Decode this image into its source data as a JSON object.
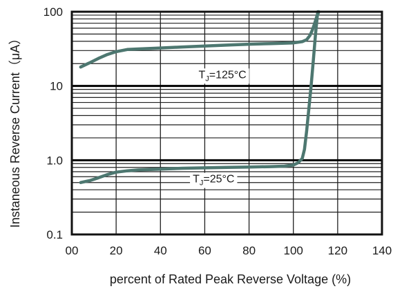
{
  "chart_data": {
    "type": "line",
    "title": "",
    "xlabel": "percent of Rated  Peak Reverse Voltage (%)",
    "ylabel": "Instaneous Reverse Current（μA）",
    "xlim": [
      0,
      140
    ],
    "ylim": [
      0.1,
      100
    ],
    "yscale": "log",
    "grid": true,
    "x_ticks": [
      0,
      20,
      40,
      60,
      80,
      100,
      120,
      140
    ],
    "x_tick_labels": [
      "00",
      "20",
      "40",
      "60",
      "80",
      "100",
      "120",
      "140"
    ],
    "y_ticks": [
      0.1,
      1,
      10,
      100
    ],
    "y_tick_labels": [
      "0.1",
      "1.0",
      "10",
      "100"
    ],
    "series": [
      {
        "name": "",
        "label": {
          "main": "T",
          "sub": "J",
          "rest": "=125°C",
          "x": 68,
          "y": 14.5
        },
        "x": [
          4,
          8,
          12,
          16,
          20,
          25,
          30,
          40,
          50,
          60,
          70,
          80,
          90,
          100,
          104,
          106,
          107.5,
          108.5,
          109.5,
          110.5,
          111.5
        ],
        "y": [
          18,
          20.5,
          23.5,
          26.5,
          29,
          31,
          31.5,
          32.5,
          33.5,
          34.5,
          35.5,
          36.5,
          37.2,
          38,
          39.5,
          42,
          48,
          56,
          68,
          85,
          100
        ]
      },
      {
        "name": "",
        "label": {
          "main": "T",
          "sub": "J",
          "rest": "=25°C",
          "x": 64,
          "y": 0.57
        },
        "x": [
          4,
          8,
          12,
          16,
          20,
          25,
          30,
          40,
          50,
          60,
          70,
          80,
          90,
          96,
          100,
          102,
          104,
          105,
          106,
          107,
          108,
          109,
          110,
          111
        ],
        "y": [
          0.5,
          0.53,
          0.58,
          0.64,
          0.69,
          0.72,
          0.74,
          0.76,
          0.78,
          0.79,
          0.8,
          0.81,
          0.82,
          0.83,
          0.86,
          0.92,
          1.05,
          1.4,
          2.5,
          5,
          10,
          22,
          50,
          100
        ]
      }
    ],
    "colors": {
      "line": "#4d7770",
      "grid": "#1f1f1f",
      "frame": "#111111"
    }
  }
}
